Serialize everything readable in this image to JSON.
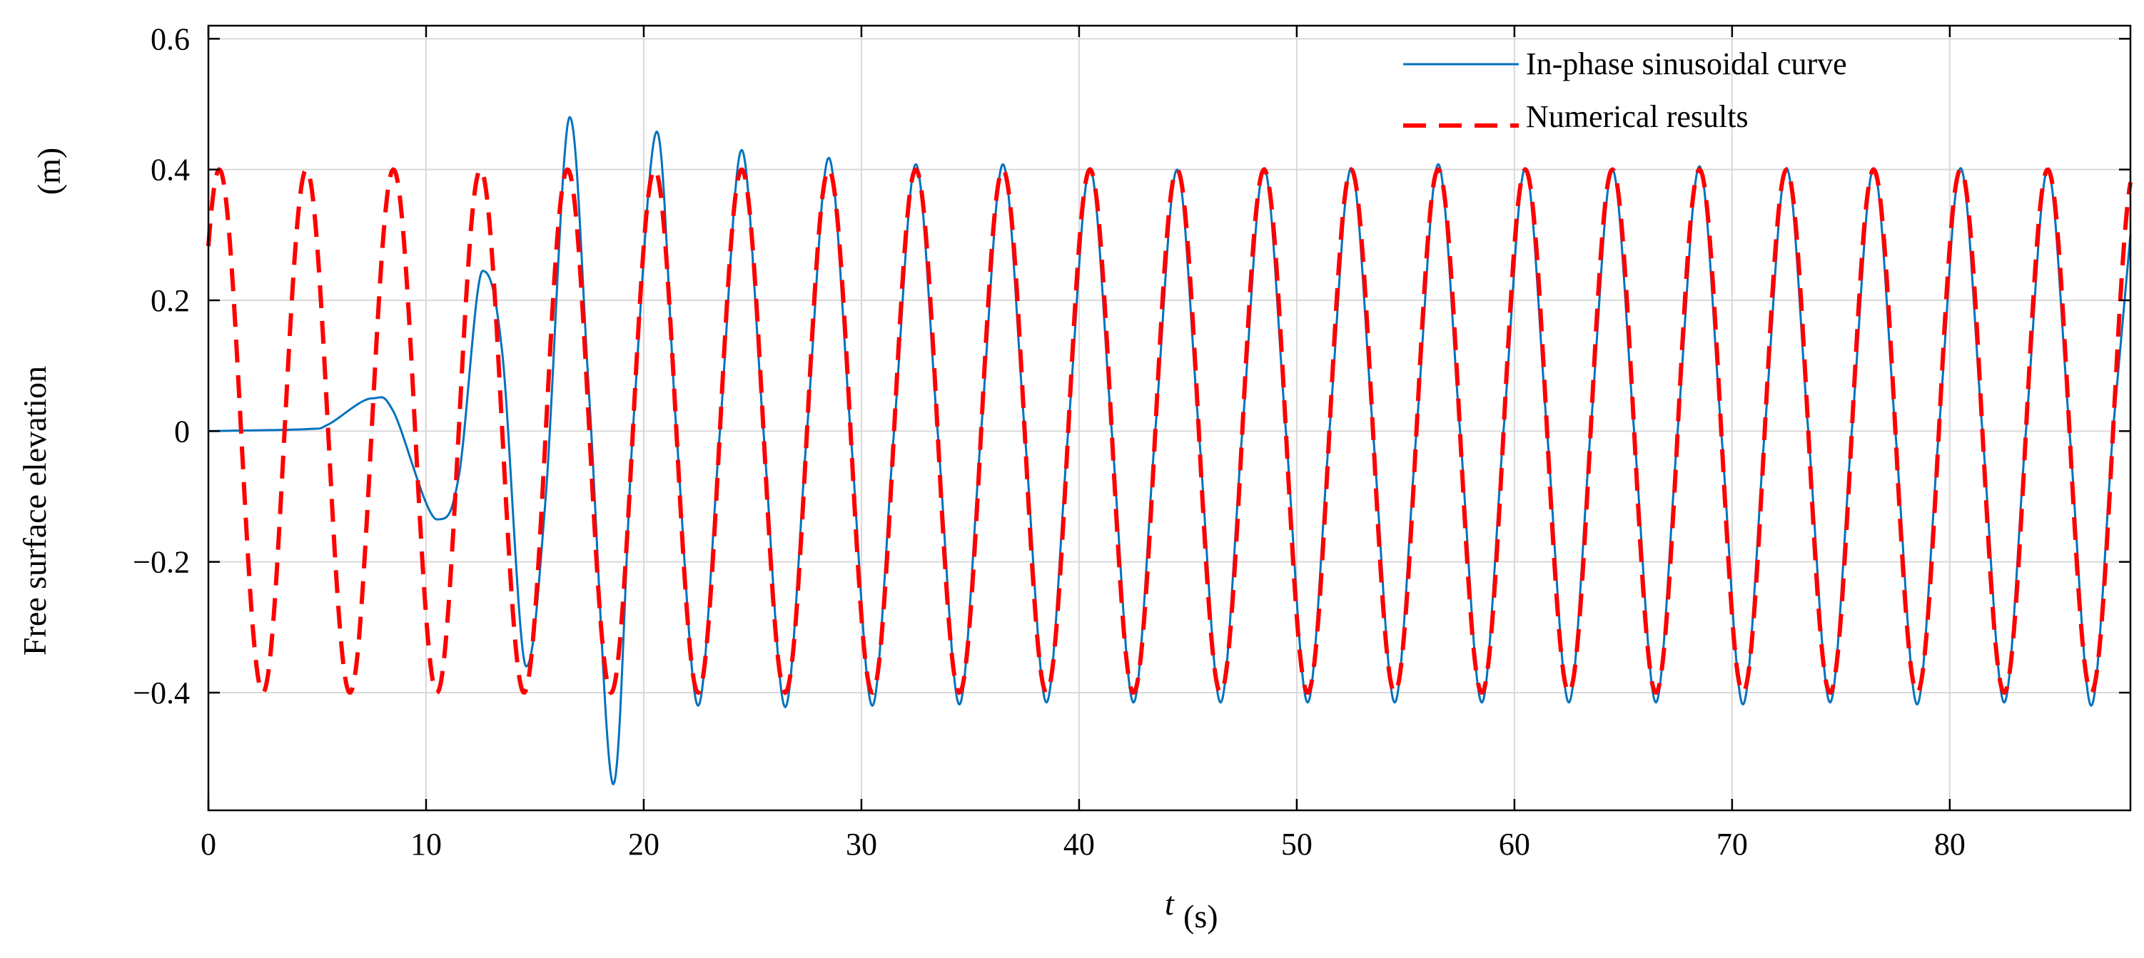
{
  "chart_data": {
    "type": "line",
    "title": "",
    "xlabel_symbol": "t",
    "xlabel_unit": "(s)",
    "ylabel_text": "Free surface elevation",
    "ylabel_unit": "(m)",
    "xlim": [
      0,
      88.3
    ],
    "ylim": [
      -0.58,
      0.62
    ],
    "xticks": [
      0,
      10,
      20,
      30,
      40,
      50,
      60,
      70,
      80
    ],
    "xtick_labels": [
      "0",
      "10",
      "20",
      "30",
      "40",
      "50",
      "60",
      "70",
      "80"
    ],
    "yticks": [
      -0.4,
      -0.2,
      0,
      0.2,
      0.4,
      0.6
    ],
    "ytick_labels": [
      "−0.4",
      "−0.2",
      "0",
      "0.2",
      "0.4",
      "0.6"
    ],
    "grid": true,
    "legend_position": "top-right",
    "series": [
      {
        "name": "In-phase sinusoidal curve",
        "style": "solid",
        "color": "#0072BD",
        "points": [
          [
            0,
            0.0
          ],
          [
            4.5,
            0.003
          ],
          [
            5.5,
            0.01
          ],
          [
            7.5,
            0.05
          ],
          [
            8.5,
            0.03
          ],
          [
            10.5,
            -0.135
          ],
          [
            11.5,
            -0.07
          ],
          [
            12.6,
            0.245
          ],
          [
            13.5,
            0.12
          ],
          [
            14.6,
            -0.36
          ],
          [
            15.5,
            -0.1
          ],
          [
            16.6,
            0.48
          ],
          [
            17.5,
            0.05
          ],
          [
            18.6,
            -0.54
          ],
          [
            19.5,
            0.0
          ],
          [
            20.6,
            0.458
          ],
          [
            21.5,
            0.0
          ],
          [
            22.5,
            -0.42
          ],
          [
            23.5,
            0.0
          ],
          [
            24.5,
            0.43
          ],
          [
            25.5,
            0.0
          ],
          [
            26.5,
            -0.422
          ],
          [
            27.5,
            0.0
          ],
          [
            28.5,
            0.418
          ],
          [
            29.5,
            0.0
          ],
          [
            30.5,
            -0.42
          ],
          [
            31.5,
            0.0
          ],
          [
            32.5,
            0.408
          ],
          [
            33.5,
            0.0
          ],
          [
            34.5,
            -0.418
          ],
          [
            35.5,
            0.0
          ],
          [
            36.5,
            0.408
          ],
          [
            37.5,
            0.0
          ],
          [
            38.5,
            -0.415
          ],
          [
            39.5,
            0.0
          ],
          [
            40.5,
            0.402
          ],
          [
            41.5,
            0.0
          ],
          [
            42.5,
            -0.415
          ],
          [
            43.5,
            0.0
          ],
          [
            44.5,
            0.4
          ],
          [
            45.5,
            0.0
          ],
          [
            46.5,
            -0.415
          ],
          [
            47.5,
            0.0
          ],
          [
            48.5,
            0.402
          ],
          [
            49.5,
            0.0
          ],
          [
            50.5,
            -0.415
          ],
          [
            51.5,
            0.0
          ],
          [
            52.5,
            0.402
          ],
          [
            53.5,
            0.0
          ],
          [
            54.5,
            -0.415
          ],
          [
            55.5,
            0.0
          ],
          [
            56.5,
            0.408
          ],
          [
            57.5,
            0.0
          ],
          [
            58.5,
            -0.415
          ],
          [
            59.5,
            0.0
          ],
          [
            60.5,
            0.402
          ],
          [
            61.5,
            0.0
          ],
          [
            62.5,
            -0.415
          ],
          [
            63.5,
            0.0
          ],
          [
            64.5,
            0.4
          ],
          [
            65.5,
            0.0
          ],
          [
            66.5,
            -0.415
          ],
          [
            67.5,
            0.0
          ],
          [
            68.5,
            0.405
          ],
          [
            69.5,
            0.0
          ],
          [
            70.5,
            -0.418
          ],
          [
            71.5,
            0.0
          ],
          [
            72.5,
            0.402
          ],
          [
            73.5,
            0.0
          ],
          [
            74.5,
            -0.415
          ],
          [
            75.5,
            0.0
          ],
          [
            76.5,
            0.402
          ],
          [
            77.5,
            0.0
          ],
          [
            78.5,
            -0.418
          ],
          [
            79.5,
            0.0
          ],
          [
            80.5,
            0.402
          ],
          [
            81.5,
            0.0
          ],
          [
            82.5,
            -0.415
          ],
          [
            83.5,
            0.0
          ],
          [
            84.5,
            0.4
          ],
          [
            85.5,
            0.0
          ],
          [
            86.5,
            -0.42
          ],
          [
            87.5,
            0.0
          ],
          [
            88.3,
            0.3
          ]
        ]
      },
      {
        "name": "Numerical results",
        "style": "dashed",
        "color": "#FF0000",
        "amplitude": 0.4,
        "period": 4.0,
        "phase_peak_t": 0.5,
        "t_range": [
          0,
          88.3
        ]
      }
    ]
  }
}
